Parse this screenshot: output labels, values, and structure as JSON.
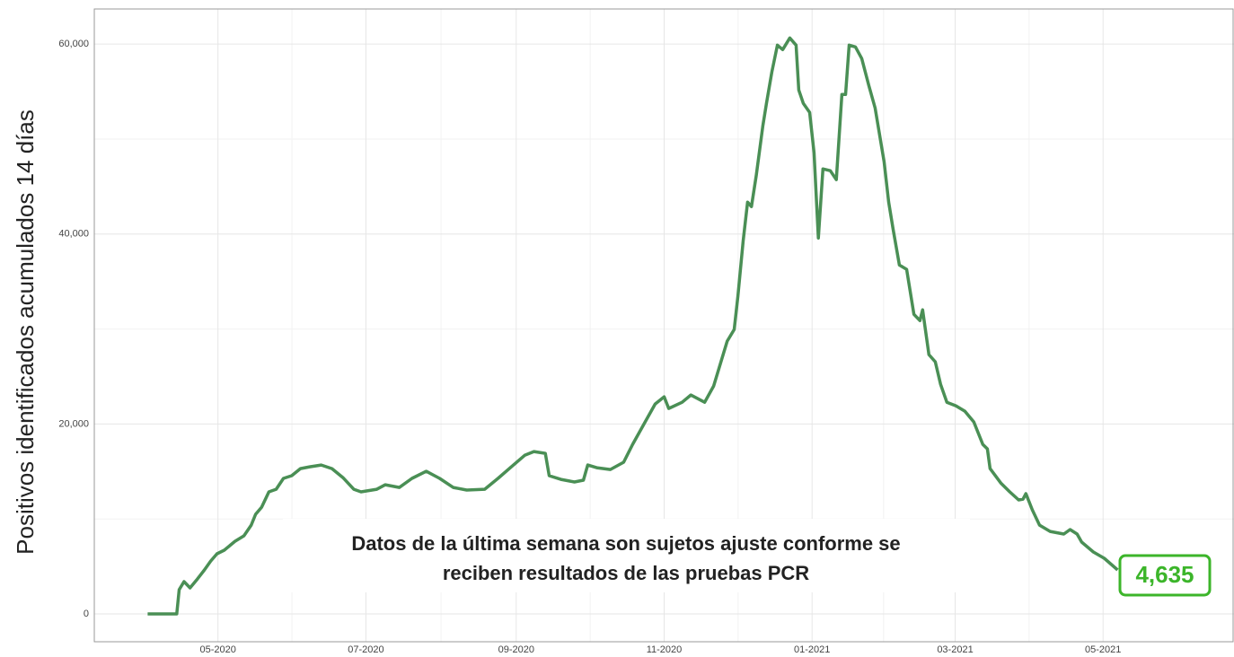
{
  "chart_data": {
    "type": "line",
    "ylabel": "Positivos identificados acumulados 14  días",
    "annotation": [
      "Datos de la última semana son sujetos ajuste conforme se",
      "reciben resultados de las pruebas PCR"
    ],
    "end_label": "4,635",
    "color": "#4a8f55",
    "label_color": "#3cb52a",
    "xlim": [
      -21,
      449
    ],
    "xticks": [
      {
        "value": 30,
        "label": "05-2020"
      },
      {
        "value": 91,
        "label": "07-2020"
      },
      {
        "value": 153,
        "label": "09-2020"
      },
      {
        "value": 214,
        "label": "11-2020"
      },
      {
        "value": 275,
        "label": "01-2021"
      },
      {
        "value": 334,
        "label": "03-2021"
      },
      {
        "value": 395,
        "label": "05-2021"
      }
    ],
    "ylim": [
      -2930,
      63700
    ],
    "yticks": [
      0,
      {
        "value": 20000,
        "label": "20,000"
      },
      {
        "value": 40000,
        "label": "40,000"
      },
      {
        "value": 60000,
        "label": "60,000"
      }
    ],
    "grid": true,
    "x": [
      1,
      13,
      14,
      16,
      18.5,
      21.5,
      24.4,
      27,
      29.6,
      32.6,
      37,
      40.7,
      43.7,
      45.5,
      48,
      51,
      54,
      57,
      60.4,
      64,
      67.8,
      72.6,
      77,
      81.5,
      86,
      89,
      95.5,
      99,
      104.8,
      110,
      115.9,
      121.4,
      127,
      132.6,
      140,
      145.5,
      151,
      156.6,
      160.3,
      165,
      166.6,
      171.4,
      177,
      180.7,
      182.5,
      186.2,
      191.8,
      197.3,
      201,
      206.6,
      210.3,
      214,
      215.9,
      221.4,
      225,
      230.7,
      234.4,
      240,
      242.9,
      244.4,
      246.6,
      248.4,
      250,
      252,
      254.7,
      256.2,
      258.4,
      260.7,
      262.9,
      265.8,
      268.4,
      269.5,
      271.4,
      274,
      275.8,
      277.6,
      279.5,
      282.5,
      285,
      287.3,
      288.8,
      290.3,
      292.9,
      295.5,
      298.4,
      301,
      304.7,
      306.6,
      308.4,
      311,
      314,
      317,
      319.5,
      320.6,
      323.2,
      325.8,
      328,
      330.6,
      334.3,
      338,
      341.7,
      345.4,
      347.3,
      348.4,
      352.8,
      356.5,
      360.2,
      362,
      363.2,
      365.8,
      368.8,
      373.2,
      378.8,
      381.4,
      384.3,
      386.2,
      391,
      395.5,
      401
    ],
    "values": [
      0,
      0,
      2550,
      3400,
      2740,
      3680,
      4630,
      5570,
      6330,
      6710,
      7650,
      8220,
      9350,
      10490,
      11240,
      12850,
      13130,
      14270,
      14550,
      15300,
      15490,
      15680,
      15300,
      14360,
      13130,
      12850,
      13130,
      13600,
      13320,
      14270,
      15020,
      14270,
      13320,
      13040,
      13130,
      14270,
      15490,
      16720,
      17100,
      16910,
      14550,
      14170,
      13890,
      14080,
      15680,
      15400,
      15210,
      15970,
      17850,
      20410,
      22110,
      22860,
      21630,
      22290,
      23050,
      22290,
      24000,
      28720,
      29950,
      33440,
      39300,
      43360,
      42890,
      46200,
      51390,
      53750,
      57060,
      59890,
      59420,
      60650,
      59890,
      55170,
      53750,
      52810,
      48560,
      39580,
      46860,
      46670,
      45720,
      54700,
      54700,
      59890,
      59700,
      58480,
      55640,
      53280,
      47610,
      43360,
      40530,
      36750,
      36280,
      31550,
      30890,
      32020,
      27300,
      26550,
      24180,
      22290,
      21920,
      21350,
      20220,
      17850,
      17380,
      15300,
      13790,
      12850,
      12000,
      12090,
      12660,
      10960,
      9350,
      8690,
      8410,
      8880,
      8410,
      7560,
      6520,
      5860,
      4635
    ]
  }
}
